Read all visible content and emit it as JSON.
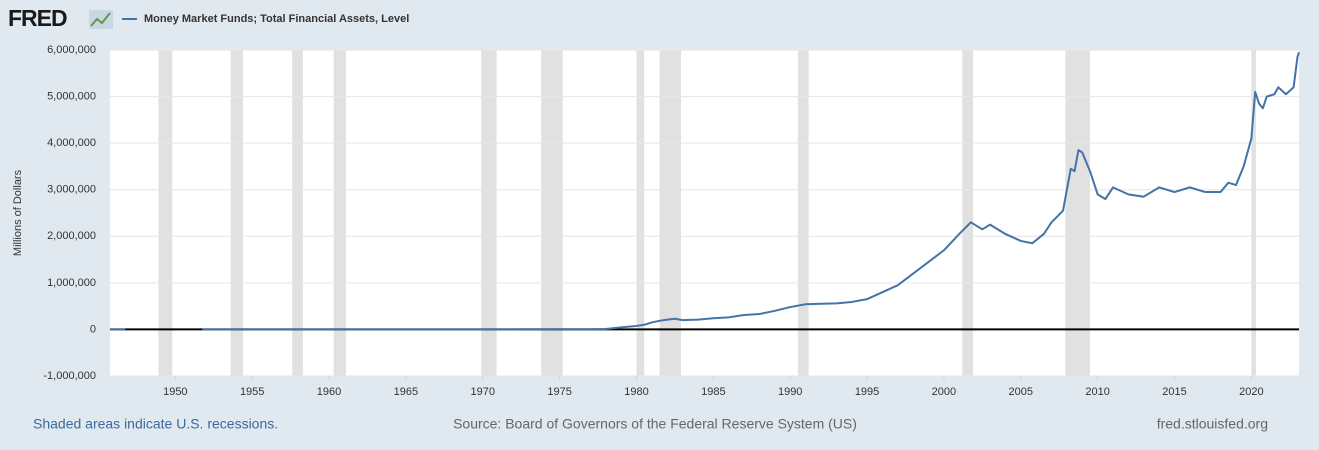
{
  "logo": "FRED",
  "chart_data": {
    "type": "line",
    "y_label": "Millions of Dollars",
    "x": [
      1945.75,
      1946.75,
      1947,
      1951.75,
      1960,
      1970,
      1975,
      1977,
      1978,
      1979,
      1980,
      1980.5,
      1981,
      1981.5,
      1982,
      1982.5,
      1983,
      1984,
      1985,
      1986,
      1987,
      1988,
      1989,
      1990,
      1991,
      1992,
      1993,
      1994,
      1995,
      1996,
      1997,
      1998,
      1999,
      2000,
      2001,
      2001.75,
      2002.5,
      2003,
      2004,
      2005,
      2005.75,
      2006.5,
      2007,
      2007.75,
      2008.25,
      2008.5,
      2008.75,
      2009,
      2009.5,
      2010,
      2010.5,
      2011,
      2012,
      2013,
      2014,
      2015,
      2016,
      2017,
      2018,
      2018.5,
      2019,
      2019.5,
      2020,
      2020.25,
      2020.5,
      2020.75,
      2021,
      2021.5,
      2021.75,
      2022.25,
      2022.75,
      2023,
      2023.1
    ],
    "series": [
      {
        "name": "Money Market Funds; Total Financial Assets, Level",
        "color": "#4572a7",
        "values": [
          0,
          0,
          null,
          0,
          0,
          0,
          3000,
          4000,
          10000,
          45000,
          75000,
          100000,
          150000,
          185000,
          210000,
          230000,
          200000,
          210000,
          240000,
          260000,
          310000,
          330000,
          400000,
          480000,
          540000,
          550000,
          560000,
          590000,
          650000,
          800000,
          950000,
          1200000,
          1450000,
          1700000,
          2050000,
          2300000,
          2150000,
          2250000,
          2050000,
          1900000,
          1850000,
          2050000,
          2300000,
          2550000,
          3450000,
          3400000,
          3850000,
          3800000,
          3400000,
          2900000,
          2800000,
          3050000,
          2900000,
          2850000,
          3050000,
          2950000,
          3050000,
          2950000,
          2950000,
          3150000,
          3100000,
          3500000,
          4100000,
          5100000,
          4850000,
          4750000,
          5000000,
          5050000,
          5200000,
          5050000,
          5200000,
          5850000,
          5950000
        ]
      }
    ],
    "xlim": [
      1945.75,
      2023.1
    ],
    "xticks": [
      1950,
      1955,
      1960,
      1965,
      1970,
      1975,
      1980,
      1985,
      1990,
      1995,
      2000,
      2005,
      2010,
      2015,
      2020
    ],
    "ylim": [
      -1000000,
      6000000
    ],
    "yticks": [
      {
        "value": -1000000,
        "label": "-1,000,000"
      },
      0,
      {
        "value": 1000000,
        "label": "1,000,000"
      },
      {
        "value": 2000000,
        "label": "2,000,000"
      },
      {
        "value": 3000000,
        "label": "3,000,000"
      },
      {
        "value": 4000000,
        "label": "4,000,000"
      },
      {
        "value": 5000000,
        "label": "5,000,000"
      },
      {
        "value": 6000000,
        "label": "6,000,000"
      }
    ],
    "grid": true,
    "recessions": [
      {
        "start": 1948.9,
        "end": 1949.8
      },
      {
        "start": 1953.6,
        "end": 1954.4
      },
      {
        "start": 1957.6,
        "end": 1958.3
      },
      {
        "start": 1960.3,
        "end": 1961.1
      },
      {
        "start": 1969.9,
        "end": 1970.9
      },
      {
        "start": 1973.8,
        "end": 1975.2
      },
      {
        "start": 1980.0,
        "end": 1980.5
      },
      {
        "start": 1981.5,
        "end": 1982.9
      },
      {
        "start": 1990.5,
        "end": 1991.2
      },
      {
        "start": 2001.2,
        "end": 2001.9
      },
      {
        "start": 2007.9,
        "end": 2009.5
      },
      {
        "start": 2020.0,
        "end": 2020.3
      }
    ],
    "recession_color": "#e1e1e1",
    "recession_note": "Shaded areas indicate U.S. recessions.",
    "source": "Source: Board of Governors of the Federal Reserve System (US)",
    "site": "fred.stlouisfed.org"
  }
}
